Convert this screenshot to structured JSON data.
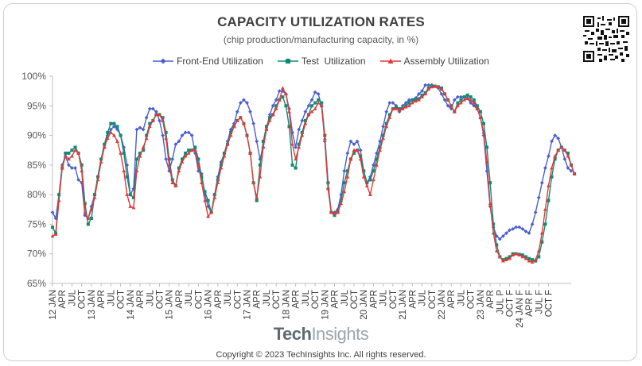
{
  "title": "CAPACITY UTILIZATION RATES",
  "subtitle": "(chip production/manufacturing capacity, in %)",
  "brand_part1": "Tech",
  "brand_part2": "Insights",
  "copyright": "Copyright © 2023 TechInsights Inc.  All rights reserved.",
  "qr_icon": "qr-code-icon",
  "chart_data": {
    "type": "line",
    "ylim": [
      65,
      100
    ],
    "yticks": [
      "65%",
      "70%",
      "75%",
      "80%",
      "85%",
      "90%",
      "95%",
      "100%"
    ],
    "legend_position": "top",
    "grid": false,
    "x_labels": [
      "12 JAN",
      "APR",
      "JUL",
      "OCT",
      "13 JAN",
      "APR",
      "JUL",
      "OCT",
      "14 JAN",
      "APR",
      "JUL",
      "OCT",
      "15 JAN",
      "APR",
      "JUL",
      "OCT",
      "16 JAN",
      "APR",
      "JUL",
      "OCT",
      "17 JAN",
      "APR",
      "JUL",
      "OCT",
      "18 JAN",
      "APR",
      "JUL",
      "OCT",
      "19 JAN",
      "APR",
      "JUL",
      "OCT",
      "20 JAN",
      "APR",
      "JUL",
      "OCT",
      "21 JAN",
      "APR",
      "JUL",
      "OCT",
      "22 JAN",
      "APR",
      "JUL",
      "OCT",
      "23 JAN",
      "APR",
      "JUL P",
      "OCT F",
      "24 JAN F",
      "APR F",
      "JUL F",
      "OCT F"
    ],
    "series": [
      {
        "name": "Front-End Utilization",
        "color": "#4a5fd0",
        "marker": "diamond",
        "values": [
          77,
          76,
          80,
          85,
          86.5,
          85,
          84.5,
          84.5,
          82.5,
          82,
          76.5,
          76,
          78,
          80,
          83,
          86,
          88,
          90,
          91,
          91.5,
          91,
          90,
          88,
          85,
          80,
          81,
          91,
          91.3,
          91,
          93,
          94.5,
          94.5,
          94,
          92.5,
          90,
          86,
          84,
          86,
          88.5,
          89,
          90,
          90.5,
          90.5,
          90,
          87,
          84,
          83.5,
          80,
          78,
          77,
          80,
          83,
          85.5,
          87,
          89,
          91,
          92,
          94,
          95.5,
          96,
          95.5,
          94,
          92,
          89,
          86,
          88,
          91,
          93.5,
          95,
          96,
          97.5,
          97.5,
          97,
          94.5,
          90.5,
          88,
          91,
          92.5,
          94,
          95,
          96,
          97.3,
          97,
          95,
          89,
          81,
          77,
          77,
          77.5,
          80,
          84,
          87,
          89,
          88.5,
          89,
          87.5,
          84,
          82,
          83,
          85,
          87,
          89,
          91.5,
          94,
          95.5,
          95.5,
          95,
          94,
          95,
          95.5,
          96,
          96,
          96.3,
          97,
          97.5,
          98.5,
          98.5,
          98.5,
          98.3,
          98,
          97,
          96,
          95,
          94.5,
          96,
          96.5,
          96.5,
          96.5,
          96.3,
          95.5,
          95,
          94.5,
          93,
          90,
          84,
          78,
          74.5,
          73,
          72.5,
          73,
          73.5,
          74,
          74.2,
          74.5,
          74.5,
          74.2,
          73.8,
          73.5,
          75,
          77,
          79.5,
          82,
          84.5,
          86.5,
          89,
          90,
          89.5,
          88,
          86,
          84.5,
          84
        ]
      },
      {
        "name": "Test  Utilization",
        "color": "#138a72",
        "marker": "square",
        "values": [
          74.5,
          73.5,
          80,
          84.5,
          87,
          87,
          87.5,
          88,
          87,
          85,
          78.5,
          75,
          76,
          80,
          83,
          86,
          88.5,
          90.5,
          92,
          92,
          91.5,
          90,
          87,
          83,
          80,
          79.5,
          86,
          87,
          87.5,
          90,
          92,
          92.5,
          93.5,
          93.5,
          93,
          90.5,
          86,
          82.5,
          81.5,
          84.5,
          86,
          87,
          87.5,
          87.5,
          88,
          86,
          83,
          80.5,
          79,
          77,
          80,
          82.5,
          85,
          87,
          88.5,
          90.5,
          91.5,
          92.5,
          93,
          92,
          90,
          87,
          82,
          79,
          85,
          89,
          91.5,
          93,
          93.5,
          95,
          96,
          96.5,
          95,
          91.5,
          85,
          84.5,
          88.5,
          90.5,
          92.5,
          93.5,
          95,
          95.5,
          96,
          95.5,
          90,
          82,
          77,
          76.5,
          77,
          79,
          82,
          84,
          86,
          87,
          87.5,
          86.5,
          84,
          82,
          82.5,
          84,
          86,
          88,
          90,
          92,
          93.5,
          94.5,
          94.8,
          94.5,
          94.5,
          95,
          95.5,
          96,
          96,
          96.2,
          96.8,
          97.2,
          98,
          98.3,
          98.3,
          98.2,
          98,
          97,
          96,
          95,
          94,
          95.5,
          96,
          96.5,
          96.8,
          96.5,
          96,
          95,
          94,
          92,
          88,
          82,
          75,
          71.5,
          69.5,
          69,
          69.2,
          69.5,
          70,
          70,
          69.9,
          69.8,
          69.5,
          69.2,
          69,
          68.8,
          69.5,
          72,
          75,
          79,
          83,
          86,
          87.5,
          88,
          87.5,
          87,
          85,
          83.5
        ]
      },
      {
        "name": "Assembly Utilization",
        "color": "#e03a3a",
        "marker": "triangle",
        "values": [
          73,
          73.3,
          79,
          84.5,
          86.5,
          86,
          86.5,
          87.5,
          87,
          84,
          77,
          76,
          77.5,
          79.5,
          82.5,
          85.5,
          88,
          89.5,
          90.5,
          90,
          89,
          87,
          84,
          80,
          78,
          77.8,
          84,
          86.5,
          88,
          89.5,
          91.5,
          92.5,
          93.5,
          93.5,
          92.5,
          89.5,
          85,
          82,
          81.5,
          84,
          85.5,
          86.5,
          87,
          87.5,
          87.5,
          85,
          82,
          79,
          76.3,
          77,
          79.5,
          82,
          84.5,
          86.5,
          88.5,
          90,
          91.5,
          92.5,
          93,
          92,
          90,
          87,
          82,
          79.5,
          83,
          88,
          91,
          92.5,
          93.5,
          94.5,
          96,
          98,
          97,
          94,
          88.5,
          86,
          88,
          90,
          92,
          93.5,
          94,
          94.5,
          95.5,
          95,
          89.5,
          81,
          77,
          76.8,
          77,
          78.5,
          80.5,
          83,
          86,
          87.5,
          87.5,
          86,
          83,
          81.5,
          80,
          82.5,
          85,
          87.5,
          89.5,
          91.5,
          93,
          94.5,
          94.5,
          94.3,
          94.5,
          94.8,
          95,
          95.5,
          95.8,
          96,
          96.5,
          97,
          97.8,
          98.2,
          98.3,
          98.2,
          97.8,
          97,
          96,
          95,
          94,
          95,
          95.5,
          96,
          96.2,
          96,
          95.5,
          94.5,
          93,
          90.5,
          85.5,
          78.5,
          73.5,
          70.5,
          69.5,
          68.8,
          69,
          69.2,
          69.8,
          70,
          69.8,
          69.5,
          69.2,
          68.8,
          68.6,
          69,
          70.5,
          73.5,
          77.5,
          81.5,
          84.5,
          86.5,
          87.5,
          88,
          87.5,
          86.5,
          85,
          83.5
        ]
      }
    ]
  }
}
